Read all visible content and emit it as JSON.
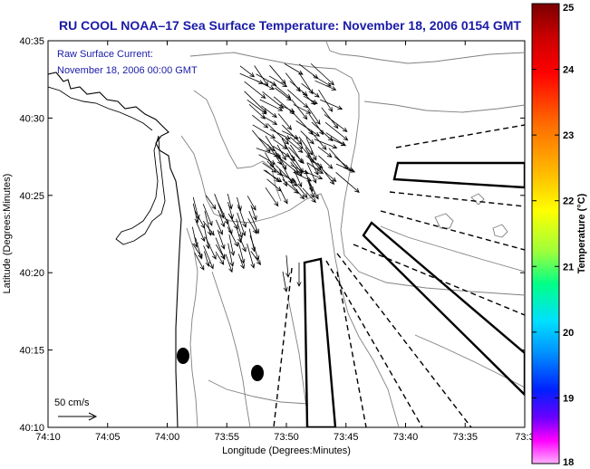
{
  "title": "RU COOL  NOAA–17  Sea Surface Temperature:  November 18, 2006 0154 GMT",
  "annotation": {
    "line1": "Raw Surface Current:",
    "line2": "November 18, 2006 00:00 GMT"
  },
  "scale_label": "50 cm/s",
  "axes": {
    "xlabel": "Longitude (Degrees:Minutes)",
    "ylabel": "Latitude (Degrees:Minutes)",
    "x_ticks": [
      "74:10",
      "74:05",
      "74:00",
      "73:55",
      "73:50",
      "73:45",
      "73:40",
      "73:35",
      "73:3"
    ],
    "y_ticks": [
      "40:35",
      "40:30",
      "40:25",
      "40:20",
      "40:15",
      "40:10"
    ]
  },
  "colorbar": {
    "label": "Temperature (°C)",
    "ticks": [
      "25",
      "24",
      "23",
      "22",
      "21",
      "20",
      "19",
      "18"
    ],
    "range": [
      18,
      25
    ]
  },
  "colors": {
    "title_text": "#1a1aa8",
    "coast": "#000000",
    "contours": "#808080"
  }
}
